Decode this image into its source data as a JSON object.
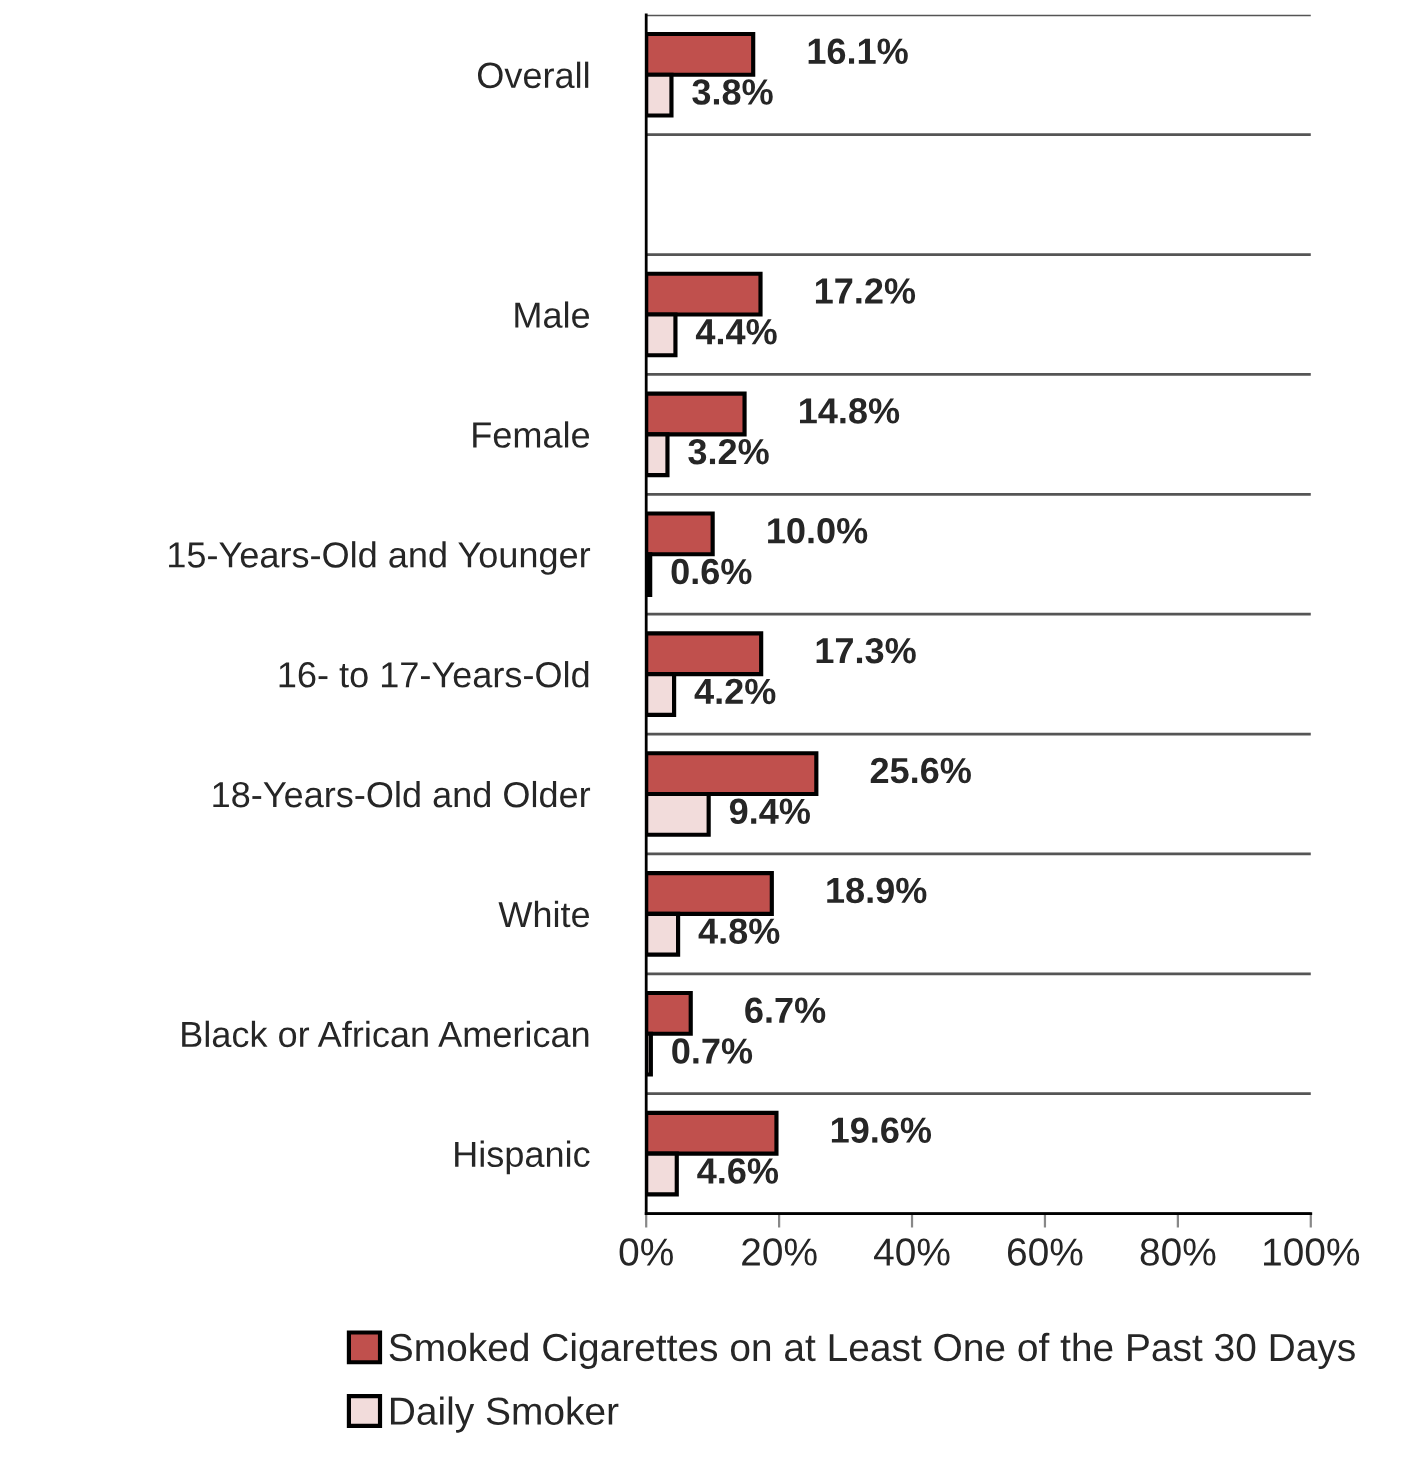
{
  "chart_data": {
    "type": "bar",
    "orientation": "horizontal",
    "categories": [
      "Overall",
      null,
      "Male",
      "Female",
      "15-Years-Old and Younger",
      "16- to 17-Years-Old",
      "18-Years-Old and Older",
      "White",
      "Black or African American",
      "Hispanic"
    ],
    "series": [
      {
        "name": "Smoked Cigarettes on at Least One of the Past 30 Days",
        "color": "#c0504d",
        "values": [
          16.1,
          null,
          17.2,
          14.8,
          10.0,
          17.3,
          25.6,
          18.9,
          6.7,
          19.6
        ],
        "value_labels": [
          "16.1%",
          null,
          "17.2%",
          "14.8%",
          "10.0%",
          "17.3%",
          "25.6%",
          "18.9%",
          "6.7%",
          "19.6%"
        ]
      },
      {
        "name": "Daily Smoker",
        "color": "#f2dcdb",
        "values": [
          3.8,
          null,
          4.4,
          3.2,
          0.6,
          4.2,
          9.4,
          4.8,
          0.7,
          4.6
        ],
        "value_labels": [
          "3.8%",
          null,
          "4.4%",
          "3.2%",
          "0.6%",
          "4.2%",
          "9.4%",
          "4.8%",
          "0.7%",
          "4.6%"
        ]
      }
    ],
    "xlim": [
      0,
      100
    ],
    "xticks": [
      {
        "value": 0,
        "label": "0%"
      },
      {
        "value": 20,
        "label": "20%"
      },
      {
        "value": 40,
        "label": "40%"
      },
      {
        "value": 60,
        "label": "60%"
      },
      {
        "value": 80,
        "label": "80%"
      },
      {
        "value": 100,
        "label": "100%"
      }
    ],
    "grid": "y",
    "legend": "bottom"
  }
}
